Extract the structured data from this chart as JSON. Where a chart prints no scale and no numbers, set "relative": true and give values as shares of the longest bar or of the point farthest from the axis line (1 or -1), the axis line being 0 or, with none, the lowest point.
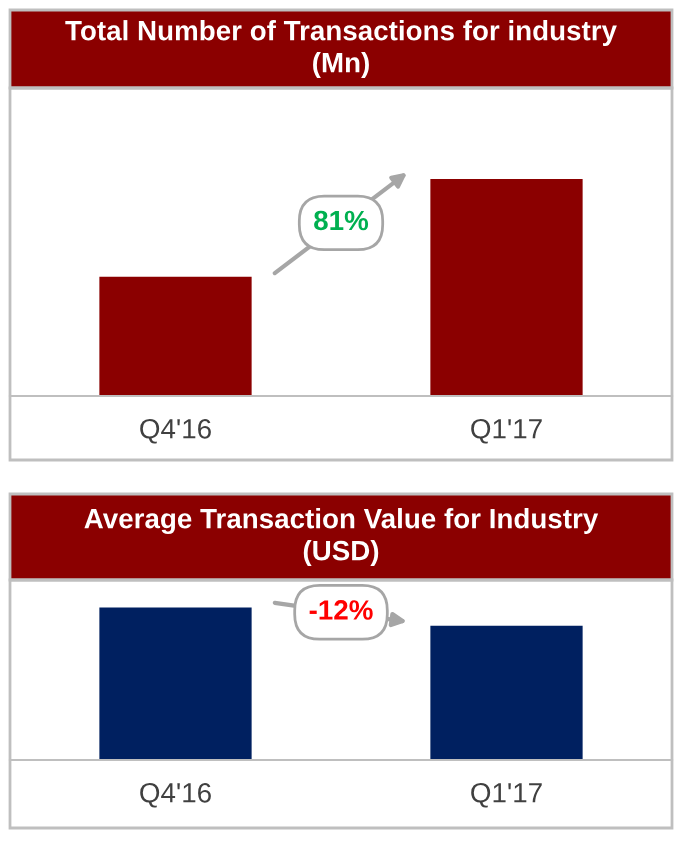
{
  "chart_data": [
    {
      "type": "bar",
      "title": "Total Number of Transactions for industry\n(Mn)",
      "categories": [
        "Q4'16",
        "Q1'17"
      ],
      "relative": true,
      "series": [
        {
          "color": "#8b0000",
          "values": [
            0.55,
            1
          ]
        }
      ],
      "annotations": [
        "81%"
      ],
      "grid": false
    },
    {
      "type": "bar",
      "title": "Average Transaction Value for Industry\n(USD)",
      "categories": [
        "Q4'16",
        "Q1'17"
      ],
      "relative": true,
      "series": [
        {
          "color": "#002060",
          "values": [
            1,
            0.88
          ]
        }
      ],
      "annotations": [
        "-12%"
      ],
      "grid": false
    }
  ]
}
